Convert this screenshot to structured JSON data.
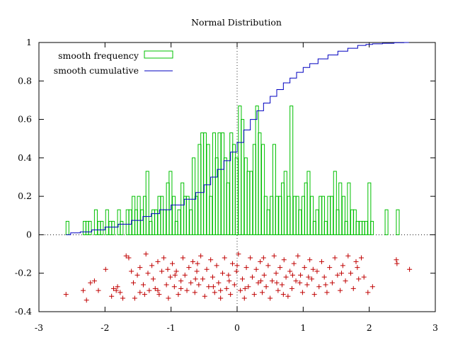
{
  "chart_data": {
    "type": "mixed",
    "title": "Normal Distribution",
    "xlim": [
      -3,
      3
    ],
    "ylim": [
      -0.4,
      1
    ],
    "x_ticks": [
      -3,
      -2,
      -1,
      0,
      1,
      2,
      3
    ],
    "x_tick_labels": [
      "-3",
      "-2",
      "-1",
      "0",
      "1",
      "2",
      "3"
    ],
    "y_ticks": [
      -0.4,
      -0.2,
      0,
      0.2,
      0.4,
      0.6,
      0.8,
      1
    ],
    "y_tick_labels": [
      "-0.4",
      "-0.2",
      "0",
      "0.2",
      "0.4",
      "0.6",
      "0.8",
      "1"
    ],
    "zero_axes": "dotted",
    "legend": {
      "position": "top-left",
      "entries": [
        {
          "label": "smooth frequency",
          "style": "bar",
          "color": "#00c000"
        },
        {
          "label": "smooth cumulative",
          "style": "line",
          "color": "#0000c0"
        }
      ]
    },
    "frequency": {
      "name": "smooth frequency",
      "color": "#00c000",
      "bin_width": 0.0435,
      "x": [
        -2.59,
        -2.33,
        -2.29,
        -2.25,
        -2.16,
        -2.11,
        -2.07,
        -1.99,
        -1.94,
        -1.9,
        -1.81,
        -1.77,
        -1.68,
        -1.64,
        -1.59,
        -1.55,
        -1.51,
        -1.46,
        -1.42,
        -1.38,
        -1.33,
        -1.29,
        -1.25,
        -1.2,
        -1.16,
        -1.12,
        -1.07,
        -1.03,
        -0.98,
        -0.94,
        -0.9,
        -0.85,
        -0.81,
        -0.77,
        -0.72,
        -0.68,
        -0.64,
        -0.59,
        -0.55,
        -0.51,
        -0.46,
        -0.42,
        -0.37,
        -0.33,
        -0.29,
        -0.24,
        -0.2,
        -0.16,
        -0.11,
        -0.07,
        -0.03,
        0.02,
        0.06,
        0.11,
        0.15,
        0.19,
        0.24,
        0.28,
        0.32,
        0.37,
        0.41,
        0.45,
        0.5,
        0.54,
        0.58,
        0.63,
        0.67,
        0.71,
        0.76,
        0.8,
        0.85,
        0.89,
        0.93,
        0.98,
        1.02,
        1.06,
        1.11,
        1.15,
        1.19,
        1.24,
        1.28,
        1.32,
        1.37,
        1.41,
        1.46,
        1.5,
        1.54,
        1.59,
        1.63,
        1.67,
        1.72,
        1.76,
        1.8,
        1.85,
        1.89,
        1.93,
        1.98,
        2.02,
        2.24,
        2.41
      ],
      "values": [
        0.07,
        0.07,
        0.07,
        0.07,
        0.13,
        0.07,
        0.07,
        0.13,
        0.07,
        0.07,
        0.13,
        0.07,
        0.13,
        0.13,
        0.2,
        0.13,
        0.2,
        0.13,
        0.2,
        0.33,
        0.07,
        0.13,
        0.13,
        0.2,
        0.2,
        0.13,
        0.27,
        0.33,
        0.2,
        0.07,
        0.13,
        0.27,
        0.2,
        0.2,
        0.13,
        0.4,
        0.2,
        0.47,
        0.53,
        0.53,
        0.47,
        0.2,
        0.53,
        0.4,
        0.53,
        0.53,
        0.4,
        0.27,
        0.53,
        0.47,
        0.4,
        0.67,
        0.6,
        0.4,
        0.33,
        0.33,
        0.47,
        0.67,
        0.53,
        0.47,
        0.2,
        0.13,
        0.2,
        0.47,
        0.2,
        0.2,
        0.27,
        0.33,
        0.2,
        0.67,
        0.2,
        0.2,
        0.13,
        0.2,
        0.27,
        0.33,
        0.2,
        0.07,
        0.13,
        0.2,
        0.2,
        0.07,
        0.2,
        0.2,
        0.33,
        0.13,
        0.27,
        0.2,
        0.07,
        0.27,
        0.13,
        0.13,
        0.07,
        0.07,
        0.07,
        0.07,
        0.27,
        0.07,
        0.13,
        0.13
      ]
    },
    "cumulative": {
      "name": "smooth cumulative",
      "color": "#0000c0",
      "x": [
        -2.59,
        -2.45,
        -2.3,
        -2.1,
        -1.9,
        -1.7,
        -1.5,
        -1.35,
        -1.25,
        -1.1,
        -0.9,
        -0.7,
        -0.55,
        -0.45,
        -0.35,
        -0.25,
        -0.15,
        -0.05,
        0.05,
        0.15,
        0.25,
        0.35,
        0.45,
        0.55,
        0.65,
        0.75,
        0.85,
        0.95,
        1.05,
        1.15,
        1.3,
        1.45,
        1.6,
        1.75,
        1.9,
        2.0,
        2.1,
        2.3,
        2.45,
        2.6
      ],
      "values": [
        0.0,
        0.01,
        0.015,
        0.025,
        0.04,
        0.055,
        0.075,
        0.095,
        0.11,
        0.13,
        0.155,
        0.185,
        0.22,
        0.26,
        0.3,
        0.34,
        0.385,
        0.43,
        0.48,
        0.545,
        0.6,
        0.645,
        0.685,
        0.72,
        0.755,
        0.79,
        0.815,
        0.845,
        0.87,
        0.89,
        0.915,
        0.935,
        0.955,
        0.97,
        0.985,
        0.99,
        0.993,
        0.996,
        0.999,
        1.0
      ]
    },
    "samples": {
      "name": "samples",
      "color": "#c00000",
      "marker": "+",
      "points": [
        [
          -2.59,
          -0.31
        ],
        [
          -2.33,
          -0.29
        ],
        [
          -2.28,
          -0.34
        ],
        [
          -2.22,
          -0.25
        ],
        [
          -2.16,
          -0.24
        ],
        [
          -2.1,
          -0.29
        ],
        [
          -1.99,
          -0.18
        ],
        [
          -1.9,
          -0.32
        ],
        [
          -1.87,
          -0.28
        ],
        [
          -1.81,
          -0.27
        ],
        [
          -1.77,
          -0.3
        ],
        [
          -1.73,
          -0.33
        ],
        [
          -1.68,
          -0.11
        ],
        [
          -1.64,
          -0.12
        ],
        [
          -1.6,
          -0.19
        ],
        [
          -1.57,
          -0.25
        ],
        [
          -1.55,
          -0.33
        ],
        [
          -1.51,
          -0.21
        ],
        [
          -1.47,
          -0.17
        ],
        [
          -1.42,
          -0.26
        ],
        [
          -1.4,
          -0.31
        ],
        [
          -1.38,
          -0.1
        ],
        [
          -1.35,
          -0.2
        ],
        [
          -1.33,
          -0.29
        ],
        [
          -1.29,
          -0.16
        ],
        [
          -1.27,
          -0.23
        ],
        [
          -1.24,
          -0.28
        ],
        [
          -1.2,
          -0.14
        ],
        [
          -1.18,
          -0.31
        ],
        [
          -1.14,
          -0.19
        ],
        [
          -1.11,
          -0.12
        ],
        [
          -1.07,
          -0.26
        ],
        [
          -1.04,
          -0.33
        ],
        [
          -1.01,
          -0.22
        ],
        [
          -0.98,
          -0.15
        ],
        [
          -0.95,
          -0.27
        ],
        [
          -0.92,
          -0.19
        ],
        [
          -0.89,
          -0.31
        ],
        [
          -0.85,
          -0.24
        ],
        [
          -0.82,
          -0.12
        ],
        [
          -0.79,
          -0.21
        ],
        [
          -0.76,
          -0.29
        ],
        [
          -0.73,
          -0.17
        ],
        [
          -0.7,
          -0.25
        ],
        [
          -0.67,
          -0.14
        ],
        [
          -0.64,
          -0.3
        ],
        [
          -0.61,
          -0.19
        ],
        [
          -0.58,
          -0.26
        ],
        [
          -0.55,
          -0.11
        ],
        [
          -0.52,
          -0.23
        ],
        [
          -0.49,
          -0.32
        ],
        [
          -0.46,
          -0.18
        ],
        [
          -0.43,
          -0.27
        ],
        [
          -0.4,
          -0.13
        ],
        [
          -0.37,
          -0.22
        ],
        [
          -0.34,
          -0.3
        ],
        [
          -0.31,
          -0.16
        ],
        [
          -0.28,
          -0.25
        ],
        [
          -0.25,
          -0.33
        ],
        [
          -0.22,
          -0.2
        ],
        [
          -0.19,
          -0.12
        ],
        [
          -0.16,
          -0.28
        ],
        [
          -0.13,
          -0.21
        ],
        [
          -0.1,
          -0.31
        ],
        [
          -0.07,
          -0.15
        ],
        [
          -0.04,
          -0.26
        ],
        [
          -0.01,
          -0.19
        ],
        [
          0.02,
          -0.1
        ],
        [
          0.05,
          -0.29
        ],
        [
          0.08,
          -0.23
        ],
        [
          0.11,
          -0.33
        ],
        [
          0.14,
          -0.17
        ],
        [
          0.17,
          -0.27
        ],
        [
          0.2,
          -0.12
        ],
        [
          0.23,
          -0.22
        ],
        [
          0.26,
          -0.31
        ],
        [
          0.29,
          -0.18
        ],
        [
          0.32,
          -0.25
        ],
        [
          0.35,
          -0.14
        ],
        [
          0.38,
          -0.3
        ],
        [
          0.41,
          -0.21
        ],
        [
          0.44,
          -0.27
        ],
        [
          0.47,
          -0.16
        ],
        [
          0.5,
          -0.33
        ],
        [
          0.53,
          -0.24
        ],
        [
          0.56,
          -0.11
        ],
        [
          0.59,
          -0.2
        ],
        [
          0.62,
          -0.29
        ],
        [
          0.65,
          -0.17
        ],
        [
          0.68,
          -0.26
        ],
        [
          0.71,
          -0.13
        ],
        [
          0.74,
          -0.22
        ],
        [
          0.77,
          -0.32
        ],
        [
          0.8,
          -0.19
        ],
        [
          0.83,
          -0.28
        ],
        [
          0.86,
          -0.15
        ],
        [
          0.89,
          -0.24
        ],
        [
          0.92,
          -0.11
        ],
        [
          0.96,
          -0.21
        ],
        [
          0.99,
          -0.3
        ],
        [
          1.02,
          -0.17
        ],
        [
          1.06,
          -0.26
        ],
        [
          1.1,
          -0.13
        ],
        [
          1.13,
          -0.23
        ],
        [
          1.17,
          -0.31
        ],
        [
          1.21,
          -0.19
        ],
        [
          1.24,
          -0.27
        ],
        [
          1.28,
          -0.14
        ],
        [
          1.32,
          -0.22
        ],
        [
          1.36,
          -0.3
        ],
        [
          1.4,
          -0.17
        ],
        [
          1.44,
          -0.25
        ],
        [
          1.48,
          -0.12
        ],
        [
          1.52,
          -0.21
        ],
        [
          1.56,
          -0.29
        ],
        [
          1.6,
          -0.16
        ],
        [
          1.64,
          -0.24
        ],
        [
          1.68,
          -0.11
        ],
        [
          1.72,
          -0.2
        ],
        [
          1.76,
          -0.28
        ],
        [
          1.8,
          -0.14
        ],
        [
          1.84,
          -0.23
        ],
        [
          1.88,
          -0.12
        ],
        [
          1.92,
          -0.22
        ],
        [
          1.98,
          -0.3
        ],
        [
          2.05,
          -0.27
        ],
        [
          2.41,
          -0.13
        ],
        [
          2.42,
          -0.15
        ],
        [
          2.61,
          -0.18
        ],
        [
          -1.83,
          -0.29
        ],
        [
          -1.47,
          -0.3
        ],
        [
          -1.2,
          -0.29
        ],
        [
          -0.94,
          -0.21
        ],
        [
          -0.63,
          -0.23
        ],
        [
          -0.36,
          -0.27
        ],
        [
          -0.12,
          -0.24
        ],
        [
          0.12,
          -0.28
        ],
        [
          0.36,
          -0.24
        ],
        [
          0.6,
          -0.25
        ],
        [
          0.84,
          -0.21
        ],
        [
          1.08,
          -0.22
        ],
        [
          1.34,
          -0.26
        ],
        [
          1.58,
          -0.2
        ],
        [
          1.82,
          -0.17
        ],
        [
          -0.6,
          -0.15
        ],
        [
          0.0,
          -0.16
        ],
        [
          0.4,
          -0.12
        ],
        [
          0.95,
          -0.25
        ],
        [
          -0.85,
          -0.28
        ],
        [
          -0.25,
          -0.29
        ],
        [
          0.7,
          -0.31
        ],
        [
          1.15,
          -0.18
        ],
        [
          -1.05,
          -0.18
        ]
      ]
    }
  }
}
